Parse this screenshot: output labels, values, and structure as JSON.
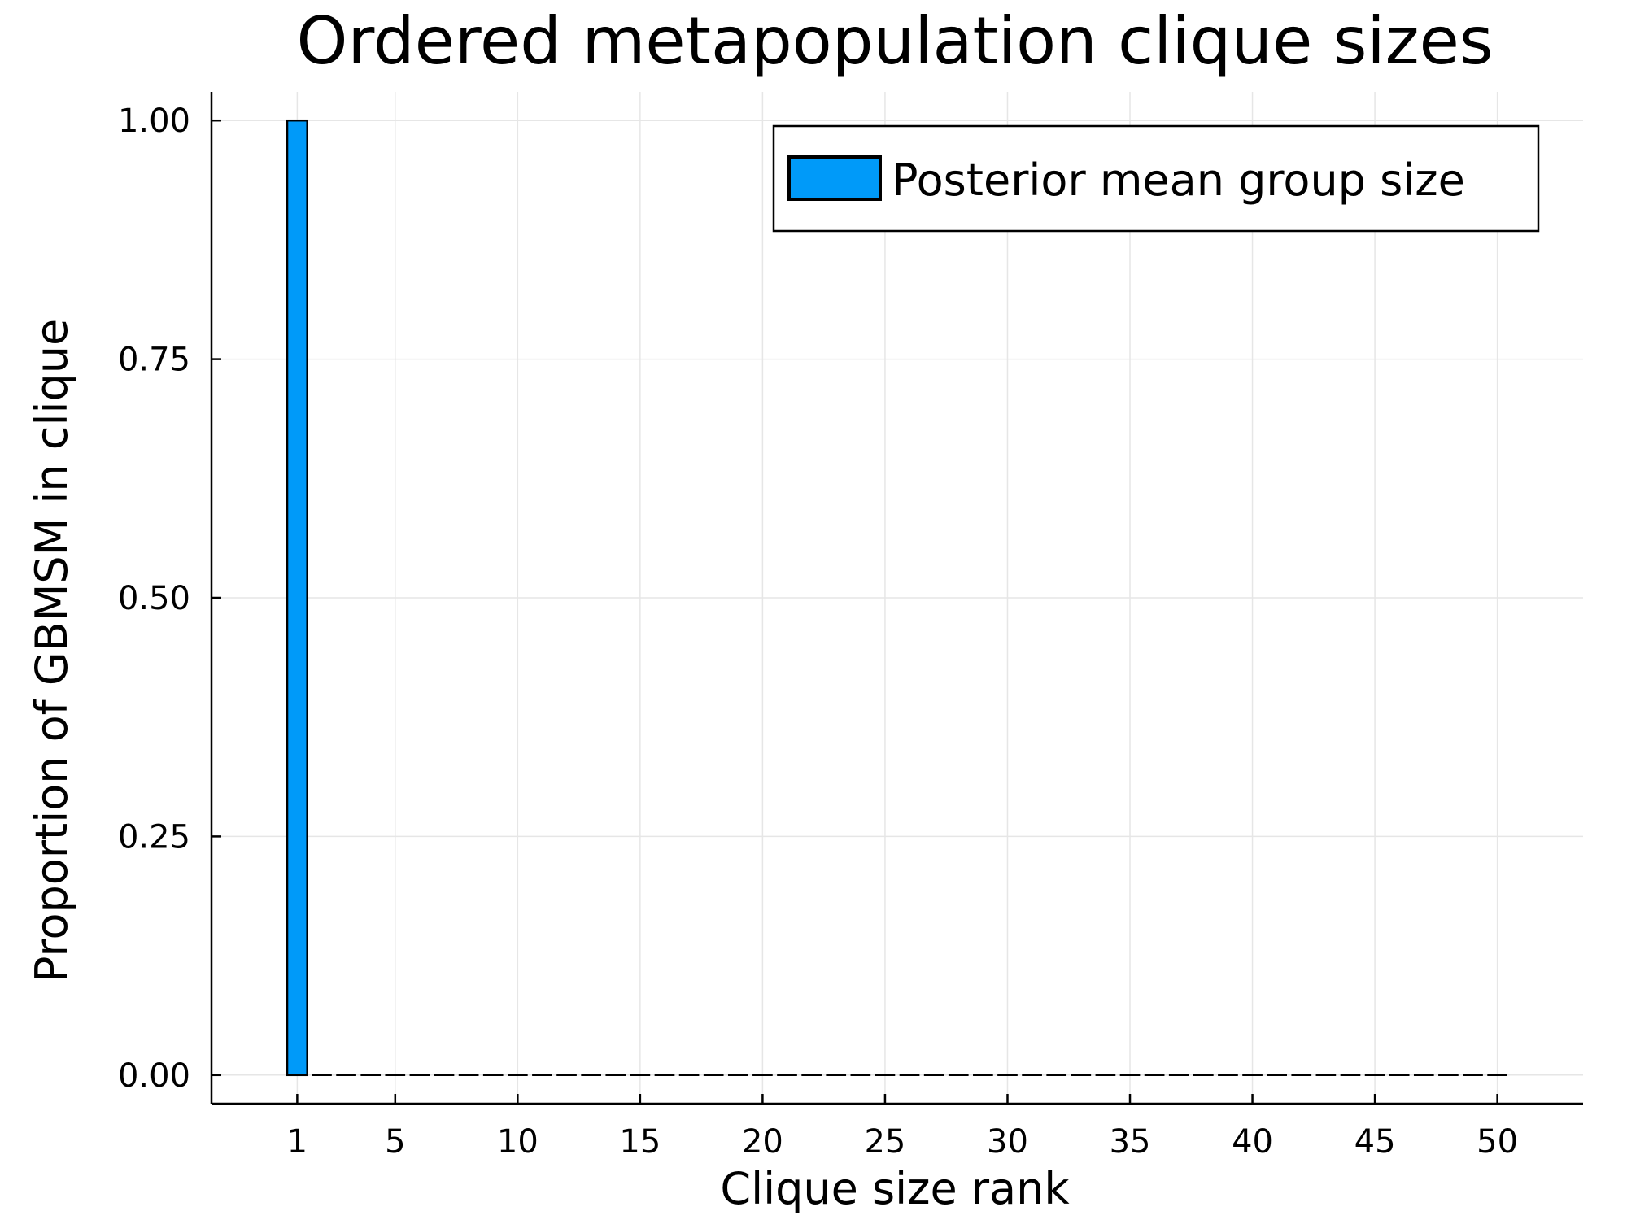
{
  "chart_data": {
    "type": "bar",
    "title": "Ordered metapopulation clique sizes",
    "xlabel": "Clique size rank",
    "ylabel": "Proportion of GBMSM in clique",
    "x": [
      1,
      2,
      3,
      4,
      5,
      6,
      7,
      8,
      9,
      10,
      11,
      12,
      13,
      14,
      15,
      16,
      17,
      18,
      19,
      20,
      21,
      22,
      23,
      24,
      25,
      26,
      27,
      28,
      29,
      30,
      31,
      32,
      33,
      34,
      35,
      36,
      37,
      38,
      39,
      40,
      41,
      42,
      43,
      44,
      45,
      46,
      47,
      48,
      49,
      50
    ],
    "series": [
      {
        "name": "Posterior mean group size",
        "color": "#009af9",
        "values": [
          1.0,
          0,
          0,
          0,
          0,
          0,
          0,
          0,
          0,
          0,
          0,
          0,
          0,
          0,
          0,
          0,
          0,
          0,
          0,
          0,
          0,
          0,
          0,
          0,
          0,
          0,
          0,
          0,
          0,
          0,
          0,
          0,
          0,
          0,
          0,
          0,
          0,
          0,
          0,
          0,
          0,
          0,
          0,
          0,
          0,
          0,
          0,
          0,
          0,
          0
        ]
      }
    ],
    "xticks": [
      1,
      5,
      10,
      15,
      20,
      25,
      30,
      35,
      40,
      45,
      50
    ],
    "xtick_labels": [
      "1",
      "5",
      "10",
      "15",
      "20",
      "25",
      "30",
      "35",
      "40",
      "45",
      "50"
    ],
    "yticks": [
      0,
      0.25,
      0.5,
      0.75,
      1.0
    ],
    "ytick_labels": [
      "0.00",
      "0.25",
      "0.50",
      "0.75",
      "1.00"
    ],
    "xlim": [
      -2.5,
      53.5
    ],
    "ylim": [
      -0.03,
      1.03
    ],
    "grid": true,
    "legend_position": "top-right"
  }
}
